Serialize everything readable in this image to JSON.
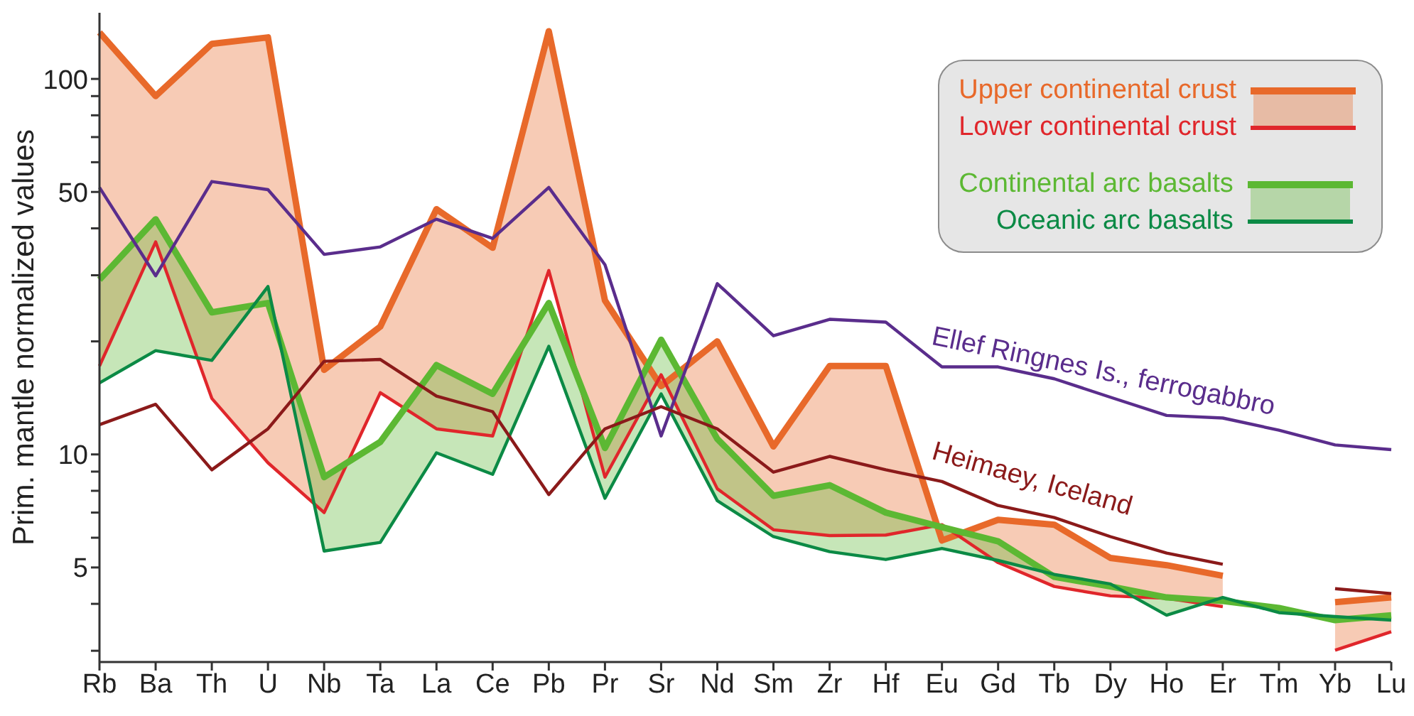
{
  "chart_data": {
    "type": "line",
    "ylabel": "Prim. mantle normalized values",
    "log": "y",
    "legend": "top right",
    "grid": false,
    "marker": "none",
    "line_style": "solid",
    "categories": [
      "Rb",
      "Ba",
      "Th",
      "U",
      "Nb",
      "Ta",
      "La",
      "Ce",
      "Pb",
      "Pr",
      "Sr",
      "Nd",
      "Sm",
      "Zr",
      "Hf",
      "Eu",
      "Gd",
      "Tb",
      "Dy",
      "Ho",
      "Er",
      "Tm",
      "Yb",
      "Lu"
    ],
    "ylim": [
      2.8,
      150
    ],
    "yticks": [
      {
        "value": 3,
        "label": null
      },
      {
        "value": 4,
        "label": null
      },
      5,
      {
        "value": 6,
        "label": null
      },
      {
        "value": 7,
        "label": null
      },
      {
        "value": 8,
        "label": null
      },
      {
        "value": 9,
        "label": null
      },
      10,
      {
        "value": 20,
        "label": null
      },
      {
        "value": 30,
        "label": null
      },
      {
        "value": 40,
        "label": null
      },
      50,
      {
        "value": 60,
        "label": null
      },
      {
        "value": 70,
        "label": null
      },
      {
        "value": 80,
        "label": null
      },
      {
        "value": 90,
        "label": null
      },
      100
    ],
    "series": [
      {
        "name": "Upper continental crust",
        "color": "#e8692a",
        "values": [
          133,
          90,
          124,
          129,
          16.8,
          21.9,
          45,
          35.5,
          134,
          25.7,
          15.2,
          20,
          10.5,
          17.2,
          17.2,
          5.9,
          6.7,
          6.5,
          5.3,
          5.07,
          4.75,
          null,
          4.04,
          4.16
        ],
        "lower": [
          17.2,
          36.8,
          14.1,
          9.5,
          7.0,
          14.6,
          11.7,
          11.2,
          30.9,
          8.7,
          16.3,
          8.1,
          6.3,
          6.08,
          6.1,
          6.5,
          5.15,
          4.45,
          4.2,
          4.14,
          3.93,
          null,
          3.01,
          3.37
        ],
        "upper": [
          133,
          90,
          124,
          129,
          16.8,
          21.9,
          45,
          35.5,
          134,
          25.7,
          15.2,
          20,
          10.5,
          17.2,
          17.2,
          5.9,
          6.7,
          6.5,
          5.3,
          5.07,
          4.75,
          null,
          4.04,
          4.16
        ]
      },
      {
        "name": "Lower continental crust",
        "color": "#e0262b",
        "values": [
          17.2,
          36.8,
          14.1,
          9.5,
          7.0,
          14.6,
          11.7,
          11.2,
          30.9,
          8.7,
          16.3,
          8.1,
          6.3,
          6.08,
          6.1,
          6.5,
          5.15,
          4.45,
          4.2,
          4.14,
          3.93,
          null,
          3.01,
          3.37
        ]
      },
      {
        "name": "Continental arc basalts",
        "color": "#5cb833",
        "values": [
          29.2,
          42.3,
          23.9,
          25.3,
          8.7,
          10.8,
          17.3,
          14.5,
          25.3,
          10.4,
          20.2,
          11.0,
          7.76,
          8.28,
          7.0,
          6.4,
          5.87,
          4.72,
          4.45,
          4.16,
          4.07,
          3.9,
          3.62,
          3.73
        ],
        "lower": [
          15.5,
          18.9,
          17.8,
          28.0,
          5.53,
          5.83,
          10.1,
          8.85,
          19.4,
          7.64,
          14.5,
          7.53,
          6.04,
          5.51,
          5.25,
          5.62,
          5.22,
          4.79,
          4.52,
          3.73,
          4.16,
          3.79,
          3.7,
          3.62
        ],
        "upper": [
          29.2,
          42.3,
          23.9,
          25.3,
          8.7,
          10.8,
          17.3,
          14.5,
          25.3,
          10.4,
          20.2,
          11.0,
          7.76,
          8.28,
          7.0,
          6.4,
          5.87,
          4.72,
          4.45,
          4.16,
          4.07,
          3.9,
          3.62,
          3.73
        ]
      },
      {
        "name": "Oceanic arc basalts",
        "color": "#0b8a45",
        "values": [
          15.5,
          18.9,
          17.8,
          28.0,
          5.53,
          5.83,
          10.1,
          8.85,
          19.4,
          7.64,
          14.5,
          7.53,
          6.04,
          5.51,
          5.25,
          5.62,
          5.22,
          4.79,
          4.52,
          3.73,
          4.16,
          3.79,
          3.7,
          3.62
        ]
      },
      {
        "name": "Ellef Ringnes Is., ferrogabbro",
        "color": "#5a2d8c",
        "values": [
          51.4,
          29.9,
          53.3,
          50.7,
          34.1,
          35.7,
          42.3,
          37.6,
          51.4,
          32,
          11.2,
          28.5,
          20.7,
          22.9,
          22.5,
          17.1,
          17.1,
          15.9,
          14.2,
          12.7,
          12.5,
          11.6,
          10.6,
          10.3
        ]
      },
      {
        "name": "Heimaey, Iceland",
        "color": "#8b1a1a",
        "values": [
          12.0,
          13.6,
          9.1,
          11.7,
          17.7,
          17.9,
          14.3,
          13.0,
          7.82,
          11.7,
          13.4,
          11.7,
          8.97,
          9.88,
          9.1,
          8.47,
          7.31,
          6.79,
          6.04,
          5.46,
          5.1,
          null,
          4.39,
          4.26
        ]
      }
    ]
  }
}
